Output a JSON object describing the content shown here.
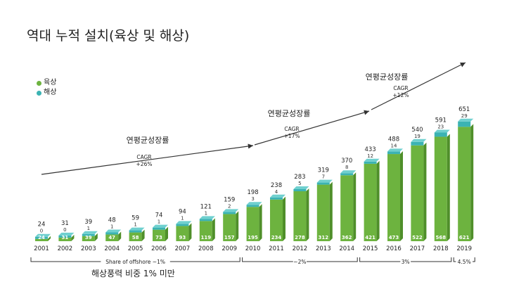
{
  "title": "역대 누적 설치(육상 및 해상)",
  "legend": {
    "onshore": {
      "label": "육상",
      "color": "#6db33f"
    },
    "offshore": {
      "label": "해상",
      "color": "#3bb3b3"
    }
  },
  "chart_data": {
    "type": "bar",
    "stacked": true,
    "categories": [
      "2001",
      "2002",
      "2003",
      "2004",
      "2005",
      "2006",
      "2007",
      "2008",
      "2009",
      "2010",
      "2011",
      "2012",
      "2013",
      "2014",
      "2015",
      "2016",
      "2017",
      "2018",
      "2019"
    ],
    "totals": [
      24,
      31,
      39,
      48,
      59,
      74,
      94,
      121,
      159,
      198,
      238,
      283,
      319,
      370,
      433,
      488,
      540,
      591,
      651
    ],
    "series": [
      {
        "name": "육상",
        "values": [
          24,
          31,
          39,
          47,
          58,
          73,
          93,
          119,
          157,
          195,
          234,
          278,
          312,
          362,
          421,
          473,
          522,
          568,
          621
        ],
        "color": "#6db33f"
      },
      {
        "name": "해상",
        "values": [
          0,
          0,
          1,
          1,
          1,
          1,
          1,
          1,
          2,
          3,
          4,
          5,
          7,
          8,
          12,
          14,
          19,
          23,
          29
        ],
        "color": "#3bb3b3"
      }
    ],
    "offshore_labels": [
      "0",
      "0",
      "1",
      "1",
      "1",
      "1",
      "1",
      "1",
      "2",
      "3",
      "4",
      "5",
      "7",
      "8",
      "12",
      "14",
      "19",
      "23",
      "29"
    ],
    "annotations": [
      {
        "title": "연평균성장률",
        "cagr_label": "CAGR",
        "cagr_value": "+26%"
      },
      {
        "title": "연평균성장률",
        "cagr_label": "CAGR",
        "cagr_value": "+17%"
      },
      {
        "title": "연평균성장률",
        "cagr_label": "CAGR",
        "cagr_value": "+12%"
      }
    ],
    "share_brackets": [
      {
        "label": "Share of offshore ~1%",
        "from": "2001",
        "to": "2009"
      },
      {
        "label": "~2%",
        "from": "2010",
        "to": "2014"
      },
      {
        "label": "3%",
        "from": "2015",
        "to": "2018"
      },
      {
        "label": "4.5%",
        "from": "2019",
        "to": "2019"
      }
    ],
    "ylim": [
      0,
      700
    ],
    "grid": false
  },
  "bottom_note": "해상풍력 비중 1% 미만"
}
